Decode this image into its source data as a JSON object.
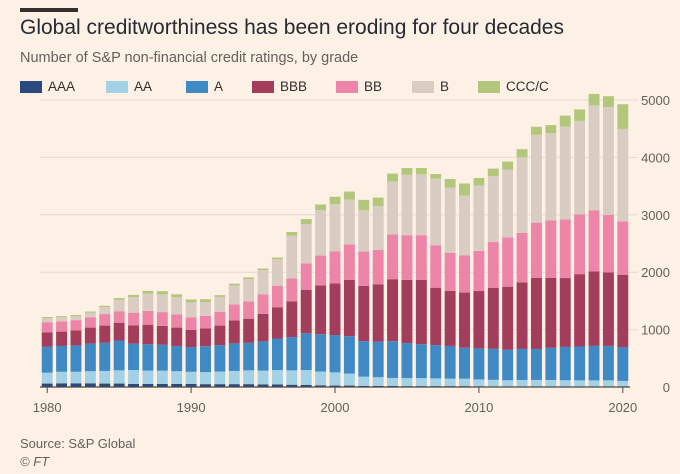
{
  "header": {
    "title": "Global creditworthiness has been eroding for four decades",
    "subtitle": "Number of S&P non-financial credit ratings, by grade"
  },
  "footer": {
    "source": "Source: S&P Global",
    "brand": "© FT"
  },
  "colors": {
    "background": "#fdf1e6",
    "gridline": "#e6d9ce",
    "axis": "#66605c",
    "AAA": "#2a4a7f",
    "AA": "#a3d1e6",
    "A": "#3f89c5",
    "BBB": "#a33d5c",
    "BB": "#ec85a8",
    "B": "#d9ccc3",
    "CCC/C": "#b3c77c"
  },
  "chart_data": {
    "type": "bar",
    "stacked": true,
    "title": "Global creditworthiness has been eroding for four decades",
    "subtitle": "Number of S&P non-financial credit ratings, by grade",
    "xlabel": "",
    "ylabel": "",
    "ylim": [
      0,
      5000
    ],
    "yticks": [
      0,
      1000,
      2000,
      3000,
      4000,
      5000
    ],
    "y_axis_position": "right",
    "xticks": [
      1980,
      1990,
      2000,
      2010,
      2020
    ],
    "grid": "horizontal",
    "legend_position": "top",
    "categories": [
      1980,
      1981,
      1982,
      1983,
      1984,
      1985,
      1986,
      1987,
      1988,
      1989,
      1990,
      1991,
      1992,
      1993,
      1994,
      1995,
      1996,
      1997,
      1998,
      1999,
      2000,
      2001,
      2002,
      2003,
      2004,
      2005,
      2006,
      2007,
      2008,
      2009,
      2010,
      2011,
      2012,
      2013,
      2014,
      2015,
      2016,
      2017,
      2018,
      2019,
      2020
    ],
    "series": [
      {
        "name": "AAA",
        "values": [
          60,
          65,
          65,
          65,
          60,
          60,
          55,
          55,
          55,
          55,
          55,
          50,
          50,
          50,
          50,
          45,
          45,
          40,
          35,
          30,
          25,
          25,
          20,
          20,
          18,
          15,
          15,
          15,
          15,
          15,
          12,
          10,
          8,
          8,
          8,
          8,
          8,
          6,
          6,
          6,
          6
        ]
      },
      {
        "name": "AA",
        "values": [
          190,
          200,
          200,
          210,
          220,
          230,
          240,
          230,
          230,
          220,
          210,
          210,
          220,
          230,
          240,
          240,
          250,
          250,
          260,
          240,
          230,
          210,
          160,
          150,
          140,
          140,
          140,
          135,
          130,
          130,
          120,
          115,
          110,
          115,
          115,
          115,
          110,
          110,
          110,
          110,
          100
        ]
      },
      {
        "name": "A",
        "values": [
          450,
          450,
          460,
          480,
          490,
          520,
          460,
          460,
          450,
          440,
          430,
          450,
          460,
          480,
          480,
          510,
          550,
          580,
          640,
          650,
          650,
          650,
          620,
          620,
          640,
          610,
          590,
          580,
          570,
          540,
          540,
          540,
          530,
          540,
          540,
          560,
          580,
          590,
          600,
          600,
          590
        ]
      },
      {
        "name": "BBB",
        "values": [
          250,
          250,
          260,
          280,
          300,
          310,
          320,
          340,
          330,
          320,
          300,
          310,
          340,
          400,
          420,
          480,
          540,
          620,
          760,
          850,
          900,
          980,
          960,
          1000,
          1080,
          1100,
          1120,
          1000,
          960,
          960,
          1000,
          1060,
          1100,
          1160,
          1240,
          1220,
          1200,
          1260,
          1300,
          1280,
          1260
        ]
      },
      {
        "name": "BB",
        "values": [
          180,
          180,
          180,
          180,
          200,
          200,
          220,
          240,
          240,
          230,
          220,
          220,
          240,
          280,
          300,
          340,
          380,
          400,
          460,
          520,
          560,
          620,
          600,
          600,
          780,
          780,
          780,
          740,
          660,
          650,
          700,
          800,
          860,
          860,
          960,
          1000,
          1020,
          1040,
          1060,
          1000,
          930
        ]
      },
      {
        "name": "B",
        "values": [
          70,
          70,
          70,
          80,
          120,
          200,
          270,
          300,
          310,
          300,
          260,
          240,
          260,
          330,
          390,
          420,
          460,
          750,
          680,
          790,
          820,
          780,
          720,
          760,
          920,
          1050,
          1060,
          1160,
          1140,
          1040,
          1140,
          1150,
          1180,
          1320,
          1530,
          1520,
          1620,
          1630,
          1830,
          1880,
          1610
        ]
      },
      {
        "name": "CCC/C",
        "values": [
          20,
          20,
          20,
          20,
          25,
          30,
          40,
          50,
          55,
          50,
          50,
          50,
          30,
          30,
          30,
          30,
          30,
          60,
          90,
          100,
          130,
          140,
          180,
          150,
          140,
          120,
          110,
          80,
          150,
          210,
          130,
          130,
          140,
          140,
          140,
          140,
          190,
          200,
          200,
          190,
          430
        ]
      }
    ]
  }
}
